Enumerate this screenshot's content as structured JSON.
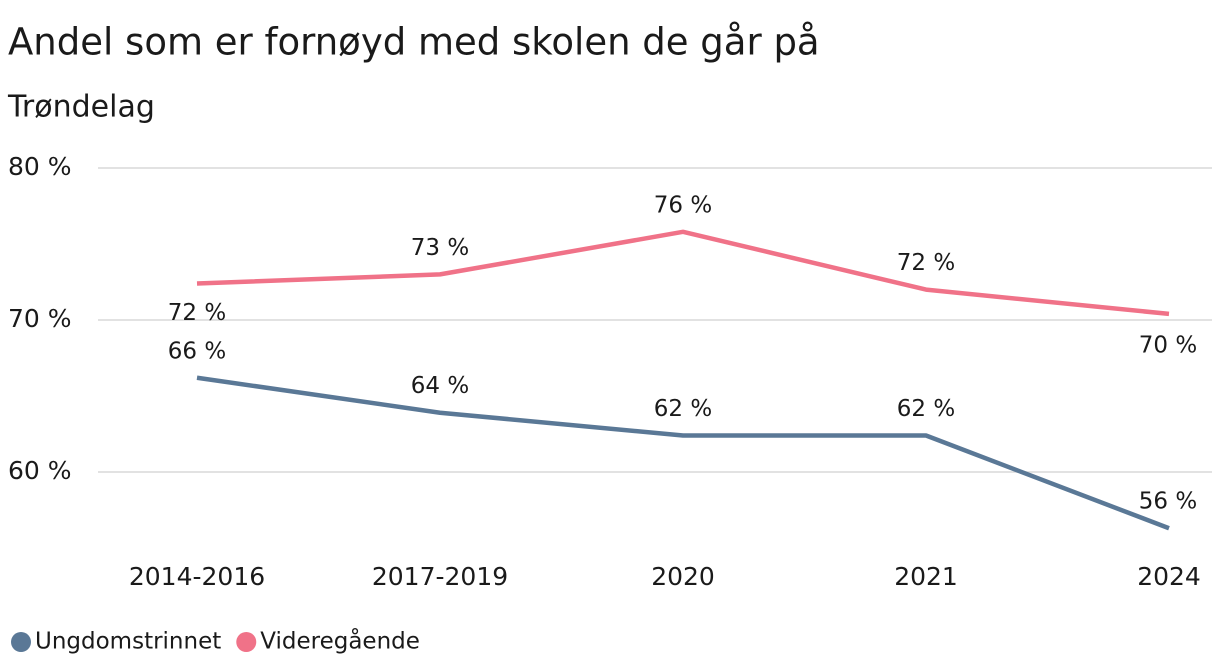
{
  "chart_data": {
    "type": "line",
    "title": "Andel som er fornøyd med skolen de går på",
    "subtitle": "Trøndelag",
    "categories": [
      "2014-2016",
      "2017-2019",
      "2020",
      "2021",
      "2024"
    ],
    "series": [
      {
        "name": "Ungdomstrinnet",
        "color": "#5a7896",
        "values": [
          66.2,
          63.9,
          62.4,
          62.4,
          56.3
        ],
        "value_labels": [
          "66 %",
          "64 %",
          "62 %",
          "62 %",
          "56 %"
        ]
      },
      {
        "name": "Videregående",
        "color": "#f07288",
        "values": [
          72.4,
          73.0,
          75.8,
          72.0,
          70.4
        ],
        "value_labels": [
          "72 %",
          "73 %",
          "76 %",
          "72 %",
          "70 %"
        ]
      }
    ],
    "ylim": [
      55,
      80
    ],
    "yticks": [
      {
        "value": 60,
        "label": "60 %"
      },
      {
        "value": 70,
        "label": "70 %"
      },
      {
        "value": 80,
        "label": "80 %"
      }
    ],
    "grid": true,
    "legend": "bottom-left"
  }
}
